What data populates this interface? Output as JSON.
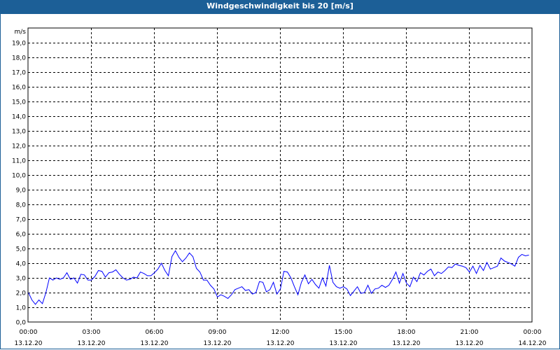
{
  "window": {
    "title": "Windgeschwindigkeit bis 20 [m/s]"
  },
  "chart_data": {
    "type": "line",
    "title": "Windgeschwindigkeit bis 20 [m/s]",
    "ylabel": "m/s",
    "xlabel": "",
    "ylim": [
      0,
      20
    ],
    "xlim_hours": [
      0,
      24
    ],
    "grid": true,
    "y_ticks": [
      "0,0",
      "1,0",
      "2,0",
      "3,0",
      "4,0",
      "5,0",
      "6,0",
      "7,0",
      "8,0",
      "9,0",
      "10,0",
      "11,0",
      "12,0",
      "13,0",
      "14,0",
      "15,0",
      "16,0",
      "17,0",
      "18,0",
      "19,0"
    ],
    "x_ticks": [
      {
        "time": "00:00",
        "date": "13.12.20"
      },
      {
        "time": "03:00",
        "date": "13.12.20"
      },
      {
        "time": "06:00",
        "date": "13.12.20"
      },
      {
        "time": "09:00",
        "date": "13.12.20"
      },
      {
        "time": "12:00",
        "date": "13.12.20"
      },
      {
        "time": "15:00",
        "date": "13.12.20"
      },
      {
        "time": "18:00",
        "date": "13.12.20"
      },
      {
        "time": "21:00",
        "date": "13.12.20"
      },
      {
        "time": "00:00",
        "date": "14.12.20"
      }
    ],
    "sample_interval_minutes": 10,
    "series": [
      {
        "name": "Windgeschwindigkeit",
        "color": "#0000ff",
        "values": [
          2.0,
          1.5,
          1.2,
          1.5,
          1.25,
          2.0,
          3.0,
          2.85,
          3.0,
          2.9,
          3.0,
          3.35,
          2.9,
          3.0,
          2.65,
          3.25,
          3.2,
          2.85,
          2.85,
          3.1,
          3.5,
          3.45,
          3.05,
          3.35,
          3.4,
          3.55,
          3.25,
          3.0,
          2.85,
          2.9,
          3.05,
          3.0,
          3.4,
          3.3,
          3.15,
          3.15,
          3.35,
          3.6,
          4.0,
          3.5,
          3.15,
          4.45,
          4.85,
          4.4,
          4.1,
          4.35,
          4.7,
          4.45,
          3.65,
          3.4,
          2.85,
          2.85,
          2.5,
          2.25,
          1.7,
          1.85,
          1.75,
          1.6,
          1.85,
          2.2,
          2.3,
          2.4,
          2.15,
          2.2,
          1.9,
          2.0,
          2.75,
          2.7,
          2.05,
          2.2,
          2.7,
          1.9,
          2.25,
          3.45,
          3.4,
          3.0,
          2.4,
          1.85,
          2.7,
          3.2,
          2.6,
          2.9,
          2.55,
          2.3,
          3.0,
          2.45,
          3.85,
          2.7,
          2.4,
          2.3,
          2.4,
          2.25,
          1.8,
          2.1,
          2.4,
          1.95,
          2.0,
          2.5,
          1.95,
          2.25,
          2.3,
          2.5,
          2.35,
          2.5,
          2.9,
          3.4,
          2.65,
          3.3,
          2.65,
          2.4,
          3.05,
          2.75,
          3.35,
          3.2,
          3.45,
          3.6,
          3.15,
          3.4,
          3.3,
          3.5,
          3.75,
          3.7,
          3.95,
          3.85,
          3.8,
          3.7,
          3.4,
          3.8,
          3.3,
          3.85,
          3.5,
          4.05,
          3.6,
          3.7,
          3.8,
          4.35,
          4.15,
          4.05,
          3.95,
          3.8,
          4.4,
          4.6,
          4.5,
          4.55
        ]
      }
    ]
  }
}
